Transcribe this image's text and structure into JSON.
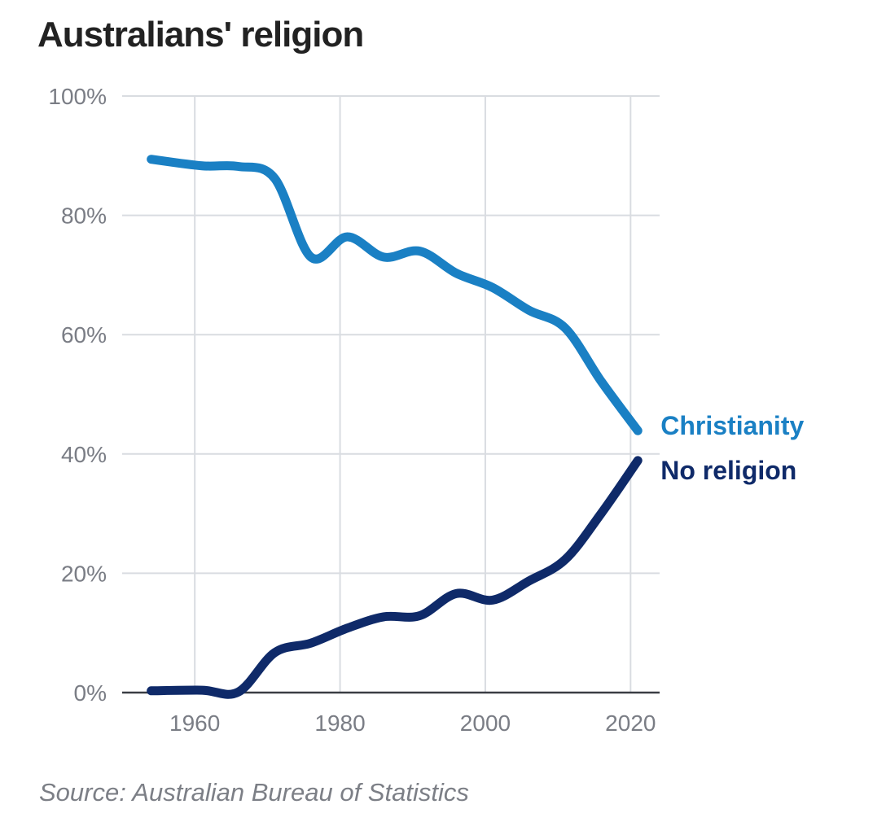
{
  "chart_data": {
    "type": "line",
    "title": "Australians' religion",
    "xlabel": "",
    "ylabel": "",
    "xlim": [
      1950,
      2024
    ],
    "ylim": [
      0,
      100
    ],
    "x_ticks": [
      1960,
      1980,
      2000,
      2020
    ],
    "y_ticks": [
      0,
      20,
      40,
      60,
      80,
      100
    ],
    "y_tick_labels": [
      "0%",
      "20%",
      "40%",
      "60%",
      "80%",
      "100%"
    ],
    "grid": true,
    "legend": "direct labels at line ends (right)",
    "series": [
      {
        "name": "Christianity",
        "color": "#1a80c4",
        "x": [
          1954,
          1961,
          1966,
          1971,
          1976,
          1981,
          1986,
          1991,
          1996,
          2001,
          2006,
          2011,
          2016,
          2021
        ],
        "values": [
          89.4,
          88.3,
          88.2,
          86.2,
          73.0,
          76.4,
          73.0,
          74.0,
          70.3,
          67.9,
          64.1,
          61.1,
          52.1,
          43.9
        ]
      },
      {
        "name": "No religion",
        "color": "#0f2a69",
        "x": [
          1954,
          1961,
          1966,
          1971,
          1976,
          1981,
          1986,
          1991,
          1996,
          2001,
          2006,
          2011,
          2016,
          2021
        ],
        "values": [
          0.3,
          0.4,
          0.1,
          6.7,
          8.3,
          10.8,
          12.7,
          12.9,
          16.6,
          15.5,
          18.7,
          22.3,
          30.1,
          38.9
        ]
      }
    ],
    "source": "Source: Australian Bureau of Statistics"
  }
}
